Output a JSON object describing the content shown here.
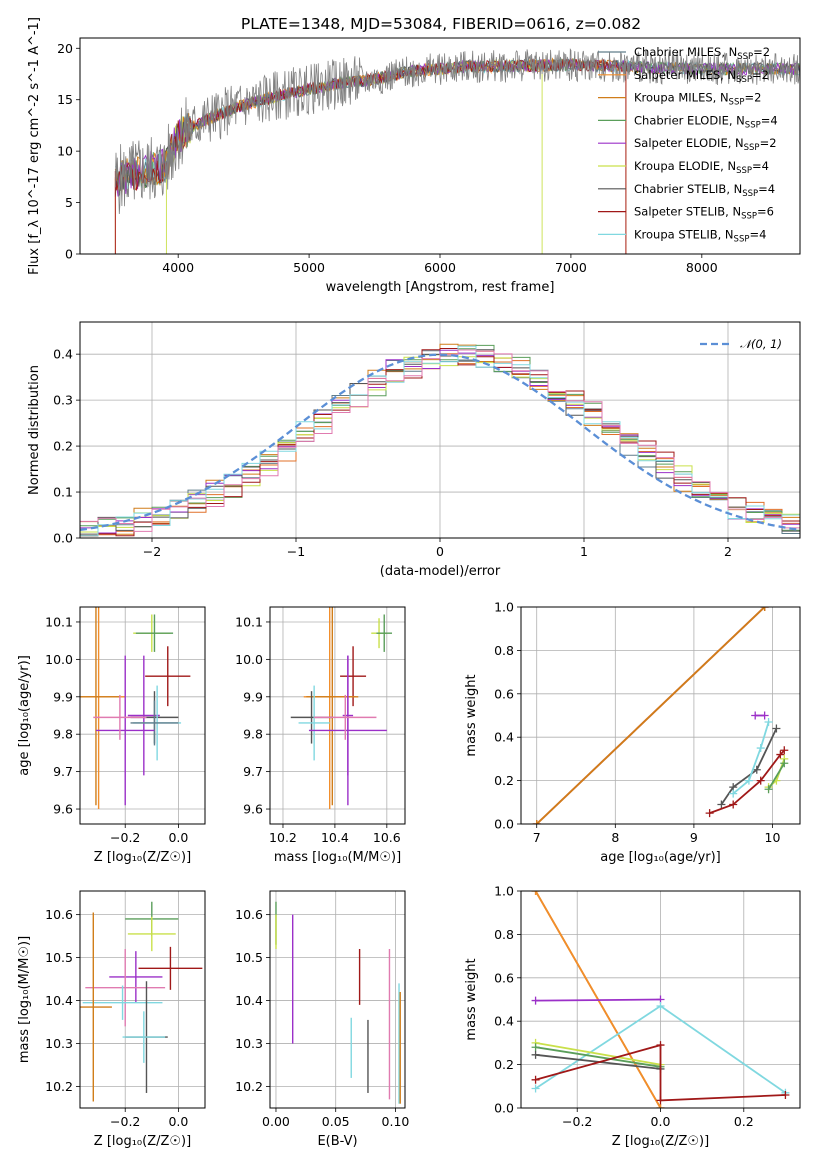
{
  "figure_title": "PLATE=1348, MJD=53084, FIBERID=0616, z=0.082",
  "colors": {
    "Chabrier MILES": "#607d8b",
    "Salpeter MILES": "#f28e2b",
    "Kroupa MILES": "#d07d1a",
    "Chabrier ELODIE": "#5a9e5a",
    "Salpeter ELODIE": "#9b30c8",
    "Kroupa ELODIE": "#c9e04a",
    "Chabrier STELIB": "#555555",
    "Salpeter STELIB": "#a01818",
    "Kroupa STELIB": "#80d8e0",
    "data": "#808080",
    "normal": "#5b8fd6",
    "hist_pink": "#e07bb0",
    "hist_orange": "#e0702a"
  },
  "chart_data": [
    {
      "id": "spectrum",
      "type": "line",
      "title": "PLATE=1348, MJD=53084, FIBERID=0616, z=0.082",
      "xlabel": "wavelength [Angstrom, rest frame]",
      "ylabel": "Flux [f_λ 10^-17 erg cm^-2 s^-1 A^-1]",
      "xlim": [
        3250,
        8750
      ],
      "ylim": [
        0,
        21
      ],
      "xticks": [
        "4000",
        "5000",
        "6000",
        "7000",
        "8000"
      ],
      "yticks": [
        "0",
        "5",
        "10",
        "15",
        "20"
      ],
      "grid": false,
      "legend_position": "top-right",
      "legend": [
        {
          "label": "Chabrier MILES, N",
          "sub": "SSP",
          "tail": "=2",
          "color_key": "Chabrier MILES"
        },
        {
          "label": "Salpeter MILES, N",
          "sub": "SSP",
          "tail": "=2",
          "color_key": "Salpeter MILES"
        },
        {
          "label": "Kroupa MILES, N",
          "sub": "SSP",
          "tail": "=2",
          "color_key": "Kroupa MILES"
        },
        {
          "label": "Chabrier ELODIE, N",
          "sub": "SSP",
          "tail": "=4",
          "color_key": "Chabrier ELODIE"
        },
        {
          "label": "Salpeter ELODIE, N",
          "sub": "SSP",
          "tail": "=2",
          "color_key": "Salpeter ELODIE"
        },
        {
          "label": "Kroupa ELODIE, N",
          "sub": "SSP",
          "tail": "=4",
          "color_key": "Kroupa ELODIE"
        },
        {
          "label": "Chabrier STELIB, N",
          "sub": "SSP",
          "tail": "=4",
          "color_key": "Chabrier STELIB"
        },
        {
          "label": "Salpeter STELIB, N",
          "sub": "SSP",
          "tail": "=6",
          "color_key": "Salpeter STELIB"
        },
        {
          "label": "Kroupa STELIB, N",
          "sub": "SSP",
          "tail": "=4",
          "color_key": "Kroupa STELIB"
        }
      ],
      "continuum": {
        "x": [
          3500,
          3700,
          3900,
          4000,
          4200,
          4500,
          4800,
          5000,
          5200,
          5500,
          5800,
          6200,
          6600,
          7000,
          7500,
          8000,
          8500
        ],
        "y": [
          7.0,
          8.0,
          8.5,
          11.5,
          13.0,
          14.5,
          15.5,
          16.0,
          16.5,
          17.0,
          17.8,
          18.2,
          18.3,
          18.4,
          18.2,
          18.0,
          18.0
        ]
      },
      "model_cutoffs": [
        {
          "model": "Salpeter MILES",
          "x_start": 3520,
          "x_end": 7420
        },
        {
          "model": "Kroupa ELODIE",
          "x_start": 3910,
          "x_end": 6780
        },
        {
          "model": "Salpeter STELIB",
          "x_start": 3520,
          "x_end": 7420
        }
      ]
    },
    {
      "id": "residuals",
      "type": "histogram",
      "xlabel": "(data-model)/error",
      "ylabel": "Normed distribution",
      "xlim": [
        -2.5,
        2.5
      ],
      "ylim": [
        0,
        0.47
      ],
      "xticks": [
        -2,
        -1,
        0,
        1,
        2
      ],
      "xtick_labels": [
        "−2",
        "−1",
        "0",
        "1",
        "2"
      ],
      "yticks": [
        0.0,
        0.1,
        0.2,
        0.3,
        0.4
      ],
      "ytick_labels": [
        "0.0",
        "0.1",
        "0.2",
        "0.3",
        "0.4"
      ],
      "grid": true,
      "legend_position": "top-right",
      "legend_label": "𝒩(0, 1)",
      "bin_width": 0.125,
      "bins_from": -2.5
    },
    {
      "id": "age-vs-Z",
      "type": "errorbar",
      "xlabel": "Z [log₁₀(Z/Z☉)]",
      "ylabel": "age  [log₁₀(age/yr)]",
      "xlim": [
        -0.37,
        0.1
      ],
      "ylim": [
        9.56,
        10.14
      ],
      "xticks": [
        -0.2,
        0.0
      ],
      "xtick_labels": [
        "−0.2",
        "0.0"
      ],
      "yticks": [
        9.6,
        9.7,
        9.8,
        9.9,
        10.0,
        10.1
      ],
      "ytick_labels": [
        "9.6",
        "9.7",
        "9.8",
        "9.9",
        "10.0",
        "10.1"
      ],
      "points": [
        {
          "model": "Kroupa ELODIE",
          "x": -0.1,
          "y": 10.07,
          "xerr": 0.07,
          "yerr": 0.05
        },
        {
          "model": "Chabrier ELODIE",
          "x": -0.09,
          "y": 10.07,
          "xerr": 0.07,
          "yerr": 0.05
        },
        {
          "model": "Salpeter STELIB",
          "x": -0.04,
          "y": 9.955,
          "xerr": 0.085,
          "yerr": 0.08
        },
        {
          "model": "Salpeter MILES",
          "x": -0.3,
          "y": 9.9,
          "xerr": 0.1,
          "yerr": 0.3
        },
        {
          "model": "Kroupa MILES",
          "x": -0.31,
          "y": 9.9,
          "xerr": 0.09,
          "yerr": 0.29
        },
        {
          "model": "Chabrier STELIB",
          "x": -0.09,
          "y": 9.845,
          "xerr": 0.09,
          "yerr": 0.07
        },
        {
          "model": "Salpeter ELODIE",
          "x": -0.13,
          "y": 9.85,
          "xerr": 0.06,
          "yerr": 0.16
        },
        {
          "model": "Kroupa STELIB",
          "x": -0.08,
          "y": 9.83,
          "xerr": 0.09,
          "yerr": 0.1
        },
        {
          "model": "Chabrier MILES",
          "x": -0.09,
          "y": 9.83,
          "xerr": 0.09,
          "yerr": 0.06
        },
        {
          "model": "Salpeter ELODIE",
          "x": -0.2,
          "y": 9.81,
          "xerr": 0.11,
          "yerr": 0.2
        },
        {
          "model": "hist_pink",
          "x": -0.22,
          "y": 9.845,
          "xerr": 0.1,
          "yerr": 0.06
        }
      ]
    },
    {
      "id": "age-vs-mass",
      "type": "errorbar",
      "xlabel": "mass [log₁₀(M/M☉)]",
      "ylabel": "",
      "xlim": [
        10.15,
        10.67
      ],
      "ylim": [
        9.56,
        10.14
      ],
      "xticks": [
        10.2,
        10.4,
        10.6
      ],
      "xtick_labels": [
        "10.2",
        "10.4",
        "10.6"
      ],
      "yticks": [
        9.6,
        9.7,
        9.8,
        9.9,
        10.0,
        10.1
      ],
      "ytick_labels": [
        "9.6",
        "9.7",
        "9.8",
        "9.9",
        "10.0",
        "10.1"
      ],
      "points": [
        {
          "model": "Kroupa ELODIE",
          "x": 10.57,
          "y": 10.07,
          "xerr": 0.03,
          "yerr": 0.04
        },
        {
          "model": "Chabrier ELODIE",
          "x": 10.59,
          "y": 10.07,
          "xerr": 0.03,
          "yerr": 0.05
        },
        {
          "model": "Salpeter STELIB",
          "x": 10.47,
          "y": 9.955,
          "xerr": 0.05,
          "yerr": 0.08
        },
        {
          "model": "Salpeter MILES",
          "x": 10.38,
          "y": 9.9,
          "xerr": 0.1,
          "yerr": 0.3
        },
        {
          "model": "Kroupa MILES",
          "x": 10.39,
          "y": 9.9,
          "xerr": 0.1,
          "yerr": 0.29
        },
        {
          "model": "Chabrier STELIB",
          "x": 10.31,
          "y": 9.845,
          "xerr": 0.08,
          "yerr": 0.07
        },
        {
          "model": "Salpeter ELODIE",
          "x": 10.45,
          "y": 9.85,
          "xerr": 0.02,
          "yerr": 0.16
        },
        {
          "model": "Kroupa STELIB",
          "x": 10.32,
          "y": 9.83,
          "xerr": 0.06,
          "yerr": 0.1
        },
        {
          "model": "Salpeter ELODIE",
          "x": 10.45,
          "y": 9.81,
          "xerr": 0.15,
          "yerr": 0.2
        },
        {
          "model": "hist_pink",
          "x": 10.44,
          "y": 9.845,
          "xerr": 0.12,
          "yerr": 0.06
        }
      ]
    },
    {
      "id": "mass-weight-vs-age",
      "type": "line",
      "xlabel": "age  [log₁₀(age/yr)]",
      "ylabel": "mass weight",
      "xlim": [
        6.8,
        10.35
      ],
      "ylim": [
        0,
        1
      ],
      "xticks": [
        7,
        8,
        9,
        10
      ],
      "xtick_labels": [
        "7",
        "8",
        "9",
        "10"
      ],
      "yticks": [
        0.0,
        0.2,
        0.4,
        0.6,
        0.8,
        1.0
      ],
      "ytick_labels": [
        "0.0",
        "0.2",
        "0.4",
        "0.6",
        "0.8",
        "1.0"
      ],
      "grid": true,
      "series": [
        {
          "model": "Salpeter ELODIE",
          "x": [
            7.0,
            9.9
          ],
          "y": [
            0.0,
            1.0
          ]
        },
        {
          "model": "Salpeter MILES",
          "x": [
            7.0,
            9.9
          ],
          "y": [
            0.0,
            1.0
          ]
        },
        {
          "model": "Kroupa MILES",
          "x": [
            7.0,
            9.9
          ],
          "y": [
            0.0,
            1.0
          ]
        },
        {
          "model": "Chabrier STELIB",
          "x": [
            9.35,
            9.5,
            9.8,
            10.05
          ],
          "y": [
            0.09,
            0.17,
            0.25,
            0.44
          ]
        },
        {
          "model": "Kroupa STELIB",
          "x": [
            9.5,
            9.7,
            9.85,
            9.95
          ],
          "y": [
            0.14,
            0.2,
            0.35,
            0.47
          ]
        },
        {
          "model": "Salpeter STELIB",
          "x": [
            9.2,
            9.5,
            9.85,
            10.1,
            10.15
          ],
          "y": [
            0.05,
            0.09,
            0.2,
            0.32,
            0.34
          ]
        },
        {
          "model": "Kroupa ELODIE",
          "x": [
            9.95,
            10.05,
            10.15
          ],
          "y": [
            0.17,
            0.2,
            0.3
          ]
        },
        {
          "model": "Chabrier ELODIE",
          "x": [
            9.95,
            10.15
          ],
          "y": [
            0.16,
            0.28
          ]
        },
        {
          "model": "Salpeter ELODIE",
          "x": [
            9.78,
            9.9
          ],
          "y": [
            0.5,
            0.5
          ]
        }
      ]
    },
    {
      "id": "mass-vs-Z",
      "type": "errorbar",
      "xlabel": "Z [log₁₀(Z/Z☉)]",
      "ylabel": "mass [log₁₀(M/M☉)]",
      "xlim": [
        -0.37,
        0.1
      ],
      "ylim": [
        10.15,
        10.655
      ],
      "xticks": [
        -0.2,
        0.0
      ],
      "xtick_labels": [
        "−0.2",
        "0.0"
      ],
      "yticks": [
        10.2,
        10.3,
        10.4,
        10.5,
        10.6
      ],
      "ytick_labels": [
        "10.2",
        "10.3",
        "10.4",
        "10.5",
        "10.6"
      ],
      "points": [
        {
          "model": "Chabrier ELODIE",
          "x": -0.1,
          "y": 10.59,
          "xerr": 0.1,
          "yerr": 0.04
        },
        {
          "model": "Kroupa ELODIE",
          "x": -0.1,
          "y": 10.555,
          "xerr": 0.09,
          "yerr": 0.04
        },
        {
          "model": "Salpeter STELIB",
          "x": -0.03,
          "y": 10.475,
          "xerr": 0.12,
          "yerr": 0.05
        },
        {
          "model": "Salpeter ELODIE",
          "x": -0.16,
          "y": 10.455,
          "xerr": 0.1,
          "yerr": 0.06
        },
        {
          "model": "hist_pink",
          "x": -0.2,
          "y": 10.43,
          "xerr": 0.15,
          "yerr": 0.09
        },
        {
          "model": "Kroupa STELIB",
          "x": -0.21,
          "y": 10.395,
          "xerr": 0.15,
          "yerr": 0.04
        },
        {
          "model": "Kroupa MILES",
          "x": -0.32,
          "y": 10.385,
          "xerr": 0.07,
          "yerr": 0.22
        },
        {
          "model": "Chabrier STELIB",
          "x": -0.12,
          "y": 10.315,
          "xerr": 0.08,
          "yerr": 0.13
        },
        {
          "model": "Kroupa STELIB",
          "x": -0.13,
          "y": 10.315,
          "xerr": 0.08,
          "yerr": 0.06
        }
      ]
    },
    {
      "id": "mass-vs-EBV",
      "type": "errorbar",
      "xlabel": "E(B-V)",
      "ylabel": "",
      "xlim": [
        -0.005,
        0.108
      ],
      "ylim": [
        10.15,
        10.655
      ],
      "xticks": [
        0.0,
        0.05,
        0.1
      ],
      "xtick_labels": [
        "0.00",
        "0.05",
        "0.10"
      ],
      "yticks": [
        10.2,
        10.3,
        10.4,
        10.5,
        10.6
      ],
      "ytick_labels": [
        "10.2",
        "10.3",
        "10.4",
        "10.5",
        "10.6"
      ],
      "points": [
        {
          "model": "Chabrier ELODIE",
          "x": 0.0,
          "y": 10.58,
          "xerr": 0,
          "yerr": 0.05
        },
        {
          "model": "Kroupa ELODIE",
          "x": 0.0,
          "y": 10.56,
          "xerr": 0,
          "yerr": 0.04
        },
        {
          "model": "Salpeter ELODIE",
          "x": 0.014,
          "y": 10.45,
          "xerr": 0,
          "yerr": 0.15
        },
        {
          "model": "Kroupa STELIB",
          "x": 0.063,
          "y": 10.29,
          "xerr": 0,
          "yerr": 0.07
        },
        {
          "model": "Salpeter STELIB",
          "x": 0.07,
          "y": 10.455,
          "xerr": 0,
          "yerr": 0.065
        },
        {
          "model": "Chabrier STELIB",
          "x": 0.077,
          "y": 10.27,
          "xerr": 0,
          "yerr": 0.085
        },
        {
          "model": "hist_pink",
          "x": 0.095,
          "y": 10.345,
          "xerr": 0,
          "yerr": 0.175
        },
        {
          "model": "Kroupa STELIB",
          "x": 0.103,
          "y": 10.3,
          "xerr": 0,
          "yerr": 0.14
        },
        {
          "model": "Kroupa MILES",
          "x": 0.104,
          "y": 10.29,
          "xerr": 0,
          "yerr": 0.13
        }
      ]
    },
    {
      "id": "mass-weight-vs-Z",
      "type": "line",
      "xlabel": "Z [log₁₀(Z/Z☉)]",
      "ylabel": "mass weight",
      "xlim": [
        -0.335,
        0.335
      ],
      "ylim": [
        0,
        1
      ],
      "xticks": [
        -0.2,
        0.0,
        0.2
      ],
      "xtick_labels": [
        "−0.2",
        "0.0",
        "0.2"
      ],
      "yticks": [
        0.0,
        0.2,
        0.4,
        0.6,
        0.8,
        1.0
      ],
      "ytick_labels": [
        "0.0",
        "0.2",
        "0.4",
        "0.6",
        "0.8",
        "1.0"
      ],
      "grid": true,
      "series": [
        {
          "model": "Kroupa MILES",
          "x": [
            -0.3,
            0.0
          ],
          "y": [
            1.0,
            0.0
          ]
        },
        {
          "model": "Salpeter MILES",
          "x": [
            -0.3,
            0.0
          ],
          "y": [
            1.0,
            0.0
          ]
        },
        {
          "model": "Salpeter ELODIE",
          "x": [
            -0.3,
            0.0
          ],
          "y": [
            0.495,
            0.5
          ]
        },
        {
          "model": "Kroupa STELIB",
          "x": [
            -0.3,
            0.0,
            0.3
          ],
          "y": [
            0.09,
            0.47,
            0.07
          ]
        },
        {
          "model": "Kroupa ELODIE",
          "x": [
            -0.3,
            0.0
          ],
          "y": [
            0.3,
            0.2
          ]
        },
        {
          "model": "Chabrier ELODIE",
          "x": [
            -0.3,
            0.0
          ],
          "y": [
            0.28,
            0.19
          ]
        },
        {
          "model": "Chabrier STELIB",
          "x": [
            -0.3,
            0.0
          ],
          "y": [
            0.245,
            0.18
          ]
        },
        {
          "model": "Salpeter STELIB",
          "x": [
            -0.3,
            0.0,
            0.0,
            0.3
          ],
          "y": [
            0.13,
            0.29,
            0.035,
            0.06
          ]
        }
      ]
    }
  ]
}
